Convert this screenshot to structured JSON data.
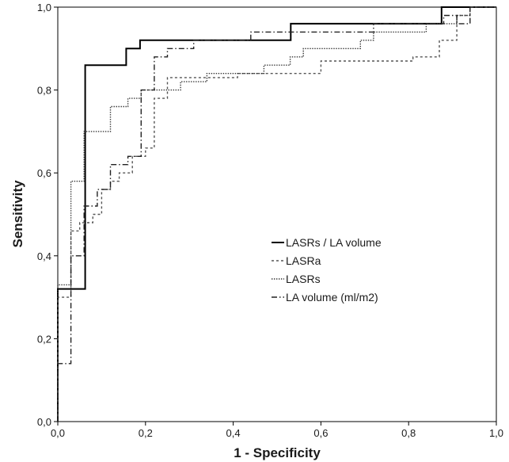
{
  "chart_data": {
    "type": "line",
    "title": "",
    "xlabel": "1 - Specificity",
    "ylabel": "Sensitivity",
    "xlim": [
      0.0,
      1.0
    ],
    "ylim": [
      0.0,
      1.0
    ],
    "x_ticks": [
      "0,0",
      "0,2",
      "0,4",
      "0,6",
      "0,8",
      "1,0"
    ],
    "y_ticks": [
      "0,0",
      "0,2",
      "0,4",
      "0,6",
      "0,8",
      "1,0"
    ],
    "grid": false,
    "legend_position": "right-center",
    "series": [
      {
        "name": "LASRs / LA volume",
        "style": "solid",
        "color": "#000000",
        "x": [
          0.0,
          0.0,
          0.0625,
          0.0625,
          0.0625,
          0.156,
          0.156,
          0.1875,
          0.1875,
          0.5312,
          0.5312,
          0.875,
          0.875,
          1.0
        ],
        "y": [
          0.0,
          0.32,
          0.32,
          0.38,
          0.86,
          0.86,
          0.9,
          0.9,
          0.92,
          0.92,
          0.96,
          0.96,
          1.0,
          1.0
        ]
      },
      {
        "name": "LASRa",
        "style": "dashed",
        "color": "#555555",
        "x": [
          0.0,
          0.0,
          0.03,
          0.03,
          0.05,
          0.05,
          0.08,
          0.08,
          0.1,
          0.1,
          0.12,
          0.12,
          0.14,
          0.14,
          0.17,
          0.17,
          0.2,
          0.2,
          0.22,
          0.22,
          0.25,
          0.25,
          0.41,
          0.41,
          0.47,
          0.47,
          0.5,
          0.5,
          0.56,
          0.56,
          0.6,
          0.6,
          0.81,
          0.81,
          0.87,
          0.87,
          0.91,
          0.91,
          0.94,
          0.94,
          1.0
        ],
        "y": [
          0.0,
          0.3,
          0.3,
          0.46,
          0.46,
          0.48,
          0.48,
          0.5,
          0.5,
          0.56,
          0.56,
          0.58,
          0.58,
          0.6,
          0.6,
          0.64,
          0.64,
          0.66,
          0.66,
          0.78,
          0.78,
          0.83,
          0.83,
          0.84,
          0.84,
          0.84,
          0.84,
          0.84,
          0.84,
          0.84,
          0.84,
          0.87,
          0.87,
          0.88,
          0.88,
          0.92,
          0.92,
          0.98,
          0.98,
          1.0,
          1.0
        ]
      },
      {
        "name": "LASRs",
        "style": "dotted",
        "color": "#333333",
        "x": [
          0.0,
          0.0,
          0.03,
          0.03,
          0.06,
          0.06,
          0.12,
          0.12,
          0.16,
          0.16,
          0.19,
          0.19,
          0.22,
          0.22,
          0.28,
          0.28,
          0.34,
          0.34,
          0.47,
          0.47,
          0.53,
          0.53,
          0.56,
          0.56,
          0.6,
          0.6,
          0.69,
          0.69,
          0.72,
          0.72,
          0.84,
          0.84,
          0.91,
          0.91,
          0.94,
          0.94,
          1.0
        ],
        "y": [
          0.0,
          0.33,
          0.33,
          0.58,
          0.58,
          0.7,
          0.7,
          0.76,
          0.76,
          0.78,
          0.78,
          0.8,
          0.8,
          0.8,
          0.8,
          0.82,
          0.82,
          0.84,
          0.84,
          0.86,
          0.86,
          0.88,
          0.88,
          0.9,
          0.9,
          0.9,
          0.9,
          0.92,
          0.92,
          0.94,
          0.94,
          0.96,
          0.96,
          0.98,
          0.98,
          1.0,
          1.0
        ]
      },
      {
        "name": "LA volume (ml/m2)",
        "style": "dashdot",
        "color": "#222222",
        "x": [
          0.0,
          0.0,
          0.03,
          0.03,
          0.06,
          0.06,
          0.09,
          0.09,
          0.12,
          0.12,
          0.16,
          0.16,
          0.19,
          0.19,
          0.22,
          0.22,
          0.25,
          0.25,
          0.28,
          0.28,
          0.31,
          0.31,
          0.44,
          0.44,
          0.72,
          0.72,
          0.88,
          0.88,
          0.91,
          0.91,
          0.94,
          0.94,
          1.0
        ],
        "y": [
          0.0,
          0.14,
          0.14,
          0.4,
          0.4,
          0.52,
          0.52,
          0.56,
          0.56,
          0.62,
          0.62,
          0.64,
          0.64,
          0.8,
          0.8,
          0.88,
          0.88,
          0.9,
          0.9,
          0.9,
          0.9,
          0.92,
          0.92,
          0.94,
          0.94,
          0.96,
          0.96,
          0.98,
          0.98,
          0.96,
          0.96,
          1.0,
          1.0
        ]
      }
    ]
  }
}
